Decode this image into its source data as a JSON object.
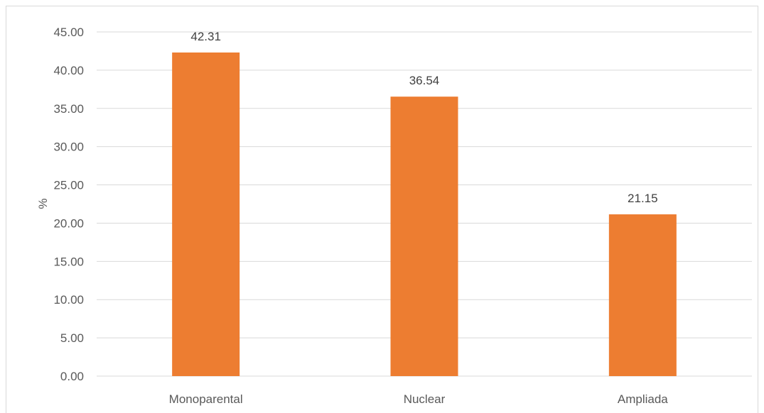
{
  "chart_data": {
    "type": "bar",
    "categories": [
      "Monoparental",
      "Nuclear",
      "Ampliada"
    ],
    "values": [
      42.31,
      36.54,
      21.15
    ],
    "data_labels": [
      "42.31",
      "36.54",
      "21.15"
    ],
    "title": "",
    "xlabel": "",
    "ylabel": "%",
    "ylim": [
      0,
      45
    ],
    "yticks": [
      "0.00",
      "5.00",
      "10.00",
      "15.00",
      "20.00",
      "25.00",
      "30.00",
      "35.00",
      "40.00",
      "45.00"
    ],
    "grid": true,
    "legend": "none",
    "bar_color": "#ED7D31",
    "grid_color": "#d9d9d9"
  }
}
